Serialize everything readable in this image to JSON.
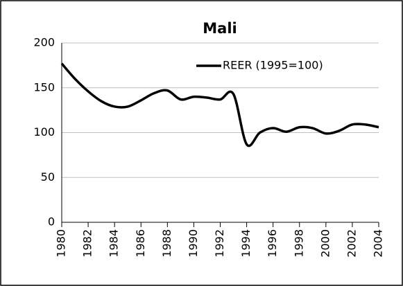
{
  "chart_data": {
    "type": "line",
    "title": "Mali",
    "x": [
      1980,
      1981,
      1982,
      1983,
      1984,
      1985,
      1986,
      1987,
      1988,
      1989,
      1990,
      1991,
      1992,
      1993,
      1994,
      1995,
      1996,
      1997,
      1998,
      1999,
      2000,
      2001,
      2002,
      2003,
      2004
    ],
    "series": [
      {
        "name": "REER (1995=100)",
        "color": "#000000",
        "values": [
          177,
          160,
          146,
          135,
          129,
          129,
          136,
          144,
          147,
          137,
          140,
          139,
          137,
          143,
          87,
          100,
          105,
          101,
          106,
          105,
          99,
          102,
          109,
          109,
          106
        ]
      }
    ],
    "xlim": [
      1980,
      2004
    ],
    "xticks": [
      1980,
      1982,
      1984,
      1986,
      1988,
      1990,
      1992,
      1994,
      1996,
      1998,
      2000,
      2002,
      2004
    ],
    "ylim": [
      0,
      200
    ],
    "yticks": [
      0,
      50,
      100,
      150,
      200
    ],
    "grid": true,
    "legend": "top-right"
  }
}
